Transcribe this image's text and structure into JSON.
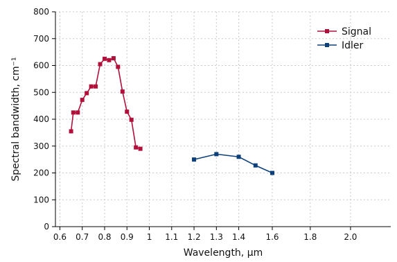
{
  "chart_data": {
    "type": "line",
    "xlabel": "Wavelength, µm",
    "ylabel": "Spectral bandwidth, cm⁻¹",
    "xlim": [
      0.58,
      2.08
    ],
    "ylim": [
      0,
      800
    ],
    "x_ticks": [
      0.6,
      0.7,
      0.8,
      0.9,
      1.0,
      1.1,
      1.2,
      1.3,
      1.4,
      1.6,
      1.8,
      2.0
    ],
    "x_tick_labels": [
      "0.6",
      "0.7",
      "0.8",
      "0.9",
      "1",
      "1.1",
      "1.2",
      "1.3",
      "1.4",
      "1.6",
      "1.8",
      "2.0"
    ],
    "x_tick_positions": [
      0.6,
      0.7,
      0.8,
      0.9,
      1.0,
      1.1,
      1.2,
      1.3,
      1.4,
      1.55,
      1.72,
      1.9
    ],
    "y_ticks": [
      0,
      100,
      200,
      300,
      400,
      500,
      600,
      700,
      800
    ],
    "grid": true,
    "legend_position": "top-right",
    "series": [
      {
        "name": "Signal",
        "color": "#b0103a",
        "marker": "square",
        "x": [
          0.65,
          0.66,
          0.68,
          0.7,
          0.72,
          0.74,
          0.76,
          0.78,
          0.8,
          0.82,
          0.84,
          0.86,
          0.88,
          0.9,
          0.92,
          0.94,
          0.96
        ],
        "y": [
          355,
          425,
          425,
          472,
          497,
          522,
          522,
          605,
          625,
          620,
          627,
          595,
          503,
          428,
          398,
          295,
          290
        ]
      },
      {
        "name": "Idler",
        "color": "#0d3f7a",
        "marker": "square",
        "x": [
          1.2,
          1.3,
          1.4,
          1.5,
          1.6
        ],
        "y": [
          250,
          270,
          260,
          228,
          200
        ]
      }
    ]
  }
}
